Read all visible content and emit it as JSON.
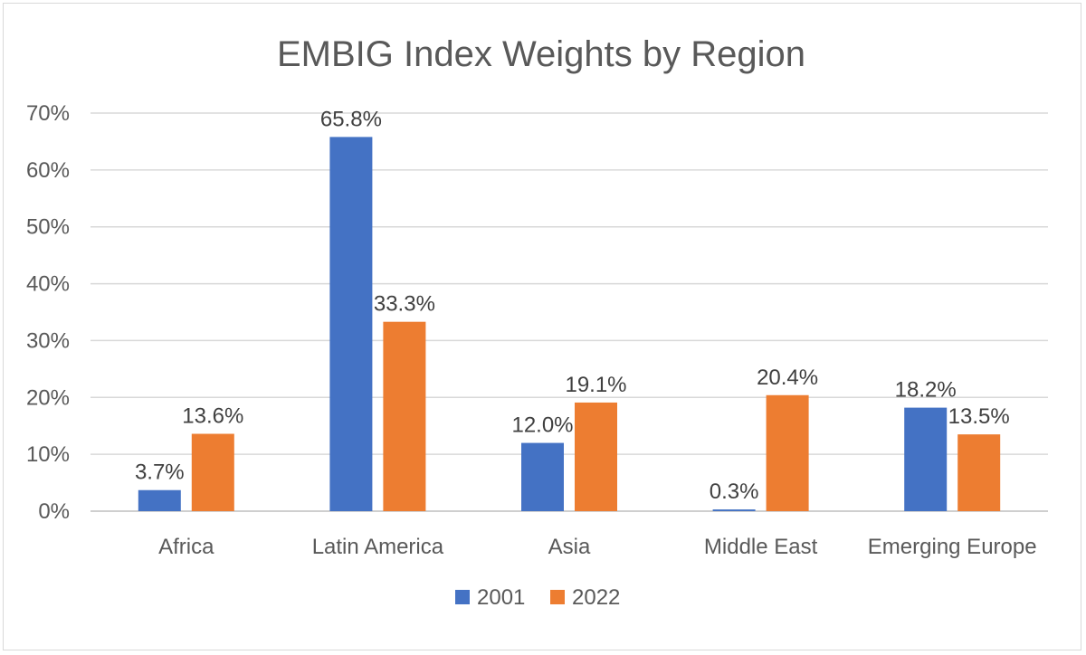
{
  "chart_data": {
    "type": "bar",
    "title": "EMBIG Index Weights by Region",
    "categories": [
      "Africa",
      "Latin America",
      "Asia",
      "Middle East",
      "Emerging Europe"
    ],
    "series": [
      {
        "name": "2001",
        "color": "#4472c4",
        "values": [
          3.7,
          65.8,
          12.0,
          0.3,
          18.2
        ],
        "labels": [
          "3.7%",
          "65.8%",
          "12.0%",
          "0.3%",
          "18.2%"
        ]
      },
      {
        "name": "2022",
        "color": "#ed7d31",
        "values": [
          13.6,
          33.3,
          19.1,
          20.4,
          13.5
        ],
        "labels": [
          "13.6%",
          "33.3%",
          "19.1%",
          "20.4%",
          "13.5%"
        ]
      }
    ],
    "ylim": [
      0,
      70
    ],
    "yticks": [
      "0%",
      "10%",
      "20%",
      "30%",
      "40%",
      "50%",
      "60%",
      "70%"
    ],
    "grid": true,
    "legend": "bottom"
  }
}
